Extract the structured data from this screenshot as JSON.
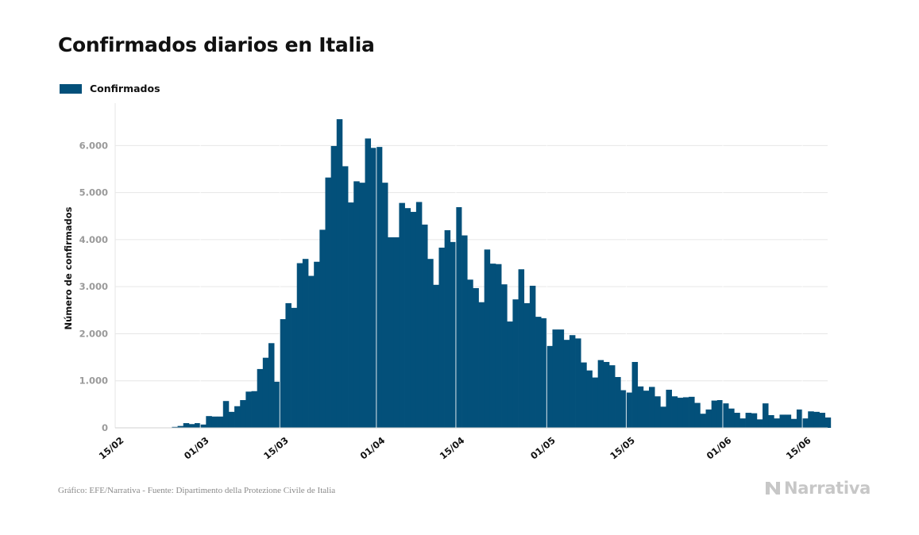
{
  "title": "Confirmados diarios en Italia",
  "source": "Gráfico: EFE/Narrativa - Fuente: Dipartimento della Protezione Civile de Italia",
  "logo_text": "Narrativa",
  "colors": {
    "bar": "#03507a",
    "grid": "#e6e6e6",
    "axis_text": "#9a9a9a",
    "logo": "#c7c7c7"
  },
  "chart_data": {
    "type": "bar",
    "start_date": "2020-02-15",
    "ylabel": "Número de confirmados",
    "ylim": [
      0,
      6900
    ],
    "yticks": [
      0,
      1000,
      2000,
      3000,
      4000,
      5000,
      6000
    ],
    "ytick_labels": [
      "0",
      "1.000",
      "2.000",
      "3.000",
      "4.000",
      "5.000",
      "6.000"
    ],
    "xtick_labels": [
      "15/02",
      "01/03",
      "15/03",
      "01/04",
      "15/04",
      "01/05",
      "15/05",
      "01/06",
      "15/06"
    ],
    "xtick_dates": [
      "2020-02-15",
      "2020-03-01",
      "2020-03-15",
      "2020-04-01",
      "2020-04-15",
      "2020-05-01",
      "2020-05-15",
      "2020-06-01",
      "2020-06-15"
    ],
    "grid": true,
    "legend": {
      "position": "top-left",
      "entries": [
        "Confirmados"
      ]
    },
    "series": [
      {
        "name": "Confirmados",
        "values": [
          0,
          0,
          0,
          0,
          0,
          0,
          0,
          0,
          0,
          0,
          20,
          40,
          100,
          80,
          100,
          70,
          250,
          240,
          240,
          570,
          340,
          460,
          590,
          770,
          780,
          1250,
          1490,
          1800,
          980,
          2310,
          2650,
          2550,
          3500,
          3590,
          3230,
          3530,
          4210,
          5320,
          5990,
          6560,
          5560,
          4790,
          5240,
          5210,
          6150,
          5950,
          5970,
          5210,
          4050,
          4050,
          4780,
          4670,
          4590,
          4800,
          4320,
          3590,
          3040,
          3830,
          4200,
          3950,
          4690,
          4090,
          3150,
          2970,
          2670,
          3790,
          3490,
          3480,
          3050,
          2260,
          2730,
          3370,
          2650,
          3020,
          2360,
          2330,
          1740,
          2090,
          2090,
          1870,
          1970,
          1900,
          1390,
          1220,
          1070,
          1440,
          1400,
          1330,
          1080,
          800,
          750,
          1400,
          880,
          790,
          870,
          670,
          450,
          810,
          670,
          640,
          650,
          660,
          530,
          300,
          390,
          580,
          590,
          520,
          410,
          320,
          200,
          320,
          310,
          180,
          520,
          270,
          200,
          280,
          280,
          190,
          390,
          200,
          350,
          340,
          320,
          220
        ]
      }
    ]
  }
}
